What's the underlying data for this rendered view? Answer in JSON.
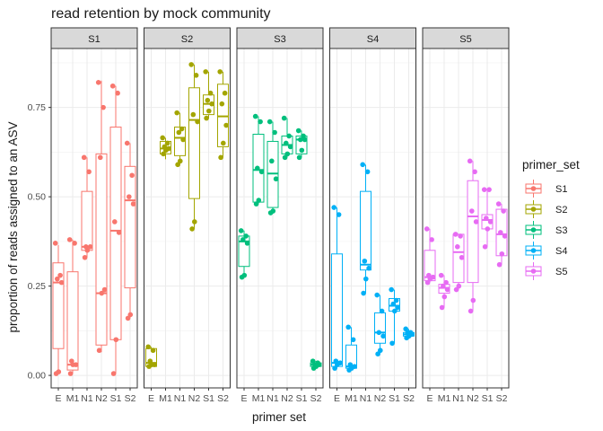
{
  "chart_data": {
    "type": "boxplot",
    "title": "read retention by mock community",
    "xlabel": "primer set",
    "ylabel": "proportion of reads assigned to an ASV",
    "ylim": [
      -0.035,
      0.915
    ],
    "yticks": [
      0.0,
      0.25,
      0.5,
      0.75
    ],
    "ytick_labels": [
      "0.00",
      "0.25",
      "0.50",
      "0.75"
    ],
    "categories": [
      "E",
      "M1",
      "N1",
      "N2",
      "S1",
      "S2"
    ],
    "facets": [
      "S1",
      "S2",
      "S3",
      "S4",
      "S5"
    ],
    "grid": true,
    "legend": {
      "title": "primer_set",
      "position": "right"
    },
    "series": [
      {
        "name": "S1",
        "color": "#F8766D",
        "boxes": [
          {
            "q1": 0.075,
            "median": 0.26,
            "q3": 0.315,
            "wlo": 0.005,
            "whi": 0.365
          },
          {
            "q1": 0.015,
            "median": 0.03,
            "q3": 0.29,
            "wlo": 0.005,
            "whi": 0.38
          },
          {
            "q1": 0.35,
            "median": 0.36,
            "q3": 0.515,
            "wlo": 0.33,
            "whi": 0.61
          },
          {
            "q1": 0.085,
            "median": 0.23,
            "q3": 0.62,
            "wlo": 0.065,
            "whi": 0.825
          },
          {
            "q1": 0.1,
            "median": 0.405,
            "q3": 0.695,
            "wlo": 0.005,
            "whi": 0.81
          },
          {
            "q1": 0.245,
            "median": 0.49,
            "q3": 0.585,
            "wlo": 0.16,
            "whi": 0.65
          }
        ],
        "points": [
          [
            0.37,
            0.28,
            0.27,
            0.26,
            0.01,
            0.005
          ],
          [
            0.38,
            0.37,
            0.04,
            0.03,
            0.03,
            0.005
          ],
          [
            0.61,
            0.57,
            0.36,
            0.36,
            0.35,
            0.33
          ],
          [
            0.82,
            0.75,
            0.61,
            0.24,
            0.23,
            0.07
          ],
          [
            0.81,
            0.79,
            0.43,
            0.4,
            0.1,
            0.005
          ],
          [
            0.65,
            0.56,
            0.5,
            0.48,
            0.17,
            0.16
          ]
        ]
      },
      {
        "name": "S2",
        "color": "#A3A500",
        "boxes": [
          {
            "q1": 0.025,
            "median": 0.035,
            "q3": 0.075,
            "wlo": 0.025,
            "whi": 0.08
          },
          {
            "q1": 0.62,
            "median": 0.635,
            "q3": 0.655,
            "wlo": 0.605,
            "whi": 0.665
          },
          {
            "q1": 0.615,
            "median": 0.665,
            "q3": 0.695,
            "wlo": 0.59,
            "whi": 0.735
          },
          {
            "q1": 0.495,
            "median": 0.715,
            "q3": 0.805,
            "wlo": 0.41,
            "whi": 0.87
          },
          {
            "q1": 0.73,
            "median": 0.76,
            "q3": 0.785,
            "wlo": 0.72,
            "whi": 0.85
          },
          {
            "q1": 0.64,
            "median": 0.725,
            "q3": 0.815,
            "wlo": 0.61,
            "whi": 0.85
          }
        ],
        "points": [
          [
            0.08,
            0.07,
            0.04,
            0.03,
            0.03,
            0.025
          ],
          [
            0.665,
            0.65,
            0.64,
            0.635,
            0.63,
            0.62
          ],
          [
            0.735,
            0.69,
            0.68,
            0.66,
            0.6,
            0.59
          ],
          [
            0.87,
            0.84,
            0.73,
            0.71,
            0.43,
            0.41
          ],
          [
            0.85,
            0.79,
            0.77,
            0.76,
            0.74,
            0.72
          ],
          [
            0.85,
            0.79,
            0.76,
            0.7,
            0.65,
            0.61
          ]
        ]
      },
      {
        "name": "S3",
        "color": "#00BF7D",
        "boxes": [
          {
            "q1": 0.305,
            "median": 0.375,
            "q3": 0.39,
            "wlo": 0.275,
            "whi": 0.405
          },
          {
            "q1": 0.485,
            "median": 0.575,
            "q3": 0.675,
            "wlo": 0.48,
            "whi": 0.725
          },
          {
            "q1": 0.47,
            "median": 0.565,
            "q3": 0.655,
            "wlo": 0.455,
            "whi": 0.71
          },
          {
            "q1": 0.62,
            "median": 0.645,
            "q3": 0.67,
            "wlo": 0.61,
            "whi": 0.72
          },
          {
            "q1": 0.62,
            "median": 0.66,
            "q3": 0.67,
            "wlo": 0.61,
            "whi": 0.685
          },
          {
            "q1": 0.025,
            "median": 0.03,
            "q3": 0.035,
            "wlo": 0.02,
            "whi": 0.04
          }
        ],
        "points": [
          [
            0.405,
            0.39,
            0.38,
            0.37,
            0.28,
            0.275
          ],
          [
            0.725,
            0.71,
            0.58,
            0.57,
            0.49,
            0.48
          ],
          [
            0.71,
            0.68,
            0.6,
            0.55,
            0.46,
            0.455
          ],
          [
            0.72,
            0.67,
            0.65,
            0.64,
            0.62,
            0.61
          ],
          [
            0.685,
            0.67,
            0.66,
            0.66,
            0.63,
            0.61
          ],
          [
            0.04,
            0.035,
            0.03,
            0.03,
            0.025,
            0.02
          ]
        ]
      },
      {
        "name": "S4",
        "color": "#00B0F6",
        "boxes": [
          {
            "q1": 0.025,
            "median": 0.035,
            "q3": 0.34,
            "wlo": 0.02,
            "whi": 0.47
          },
          {
            "q1": 0.02,
            "median": 0.025,
            "q3": 0.085,
            "wlo": 0.015,
            "whi": 0.135
          },
          {
            "q1": 0.295,
            "median": 0.31,
            "q3": 0.515,
            "wlo": 0.23,
            "whi": 0.59
          },
          {
            "q1": 0.09,
            "median": 0.12,
            "q3": 0.175,
            "wlo": 0.06,
            "whi": 0.225
          },
          {
            "q1": 0.18,
            "median": 0.195,
            "q3": 0.215,
            "wlo": 0.09,
            "whi": 0.24
          },
          {
            "q1": 0.11,
            "median": 0.115,
            "q3": 0.12,
            "wlo": 0.105,
            "whi": 0.13
          }
        ],
        "points": [
          [
            0.47,
            0.45,
            0.04,
            0.035,
            0.03,
            0.02
          ],
          [
            0.135,
            0.1,
            0.03,
            0.025,
            0.02,
            0.015
          ],
          [
            0.59,
            0.57,
            0.32,
            0.3,
            0.27,
            0.23
          ],
          [
            0.225,
            0.18,
            0.12,
            0.11,
            0.07,
            0.06
          ],
          [
            0.24,
            0.21,
            0.2,
            0.19,
            0.18,
            0.09
          ],
          [
            0.13,
            0.12,
            0.12,
            0.115,
            0.11,
            0.105
          ]
        ]
      },
      {
        "name": "S5",
        "color": "#E76BF3",
        "boxes": [
          {
            "q1": 0.265,
            "median": 0.275,
            "q3": 0.35,
            "wlo": 0.26,
            "whi": 0.41
          },
          {
            "q1": 0.23,
            "median": 0.245,
            "q3": 0.255,
            "wlo": 0.19,
            "whi": 0.28
          },
          {
            "q1": 0.26,
            "median": 0.345,
            "q3": 0.395,
            "wlo": 0.24,
            "whi": 0.395
          },
          {
            "q1": 0.26,
            "median": 0.445,
            "q3": 0.545,
            "wlo": 0.18,
            "whi": 0.6
          },
          {
            "q1": 0.41,
            "median": 0.435,
            "q3": 0.45,
            "wlo": 0.36,
            "whi": 0.52
          },
          {
            "q1": 0.335,
            "median": 0.395,
            "q3": 0.465,
            "wlo": 0.31,
            "whi": 0.48
          }
        ],
        "points": [
          [
            0.41,
            0.38,
            0.28,
            0.275,
            0.27,
            0.26
          ],
          [
            0.28,
            0.26,
            0.25,
            0.24,
            0.22,
            0.19
          ],
          [
            0.395,
            0.39,
            0.36,
            0.33,
            0.25,
            0.24
          ],
          [
            0.6,
            0.57,
            0.46,
            0.43,
            0.21,
            0.18
          ],
          [
            0.52,
            0.52,
            0.44,
            0.43,
            0.41,
            0.36
          ],
          [
            0.48,
            0.46,
            0.4,
            0.39,
            0.34,
            0.31
          ]
        ]
      }
    ]
  }
}
